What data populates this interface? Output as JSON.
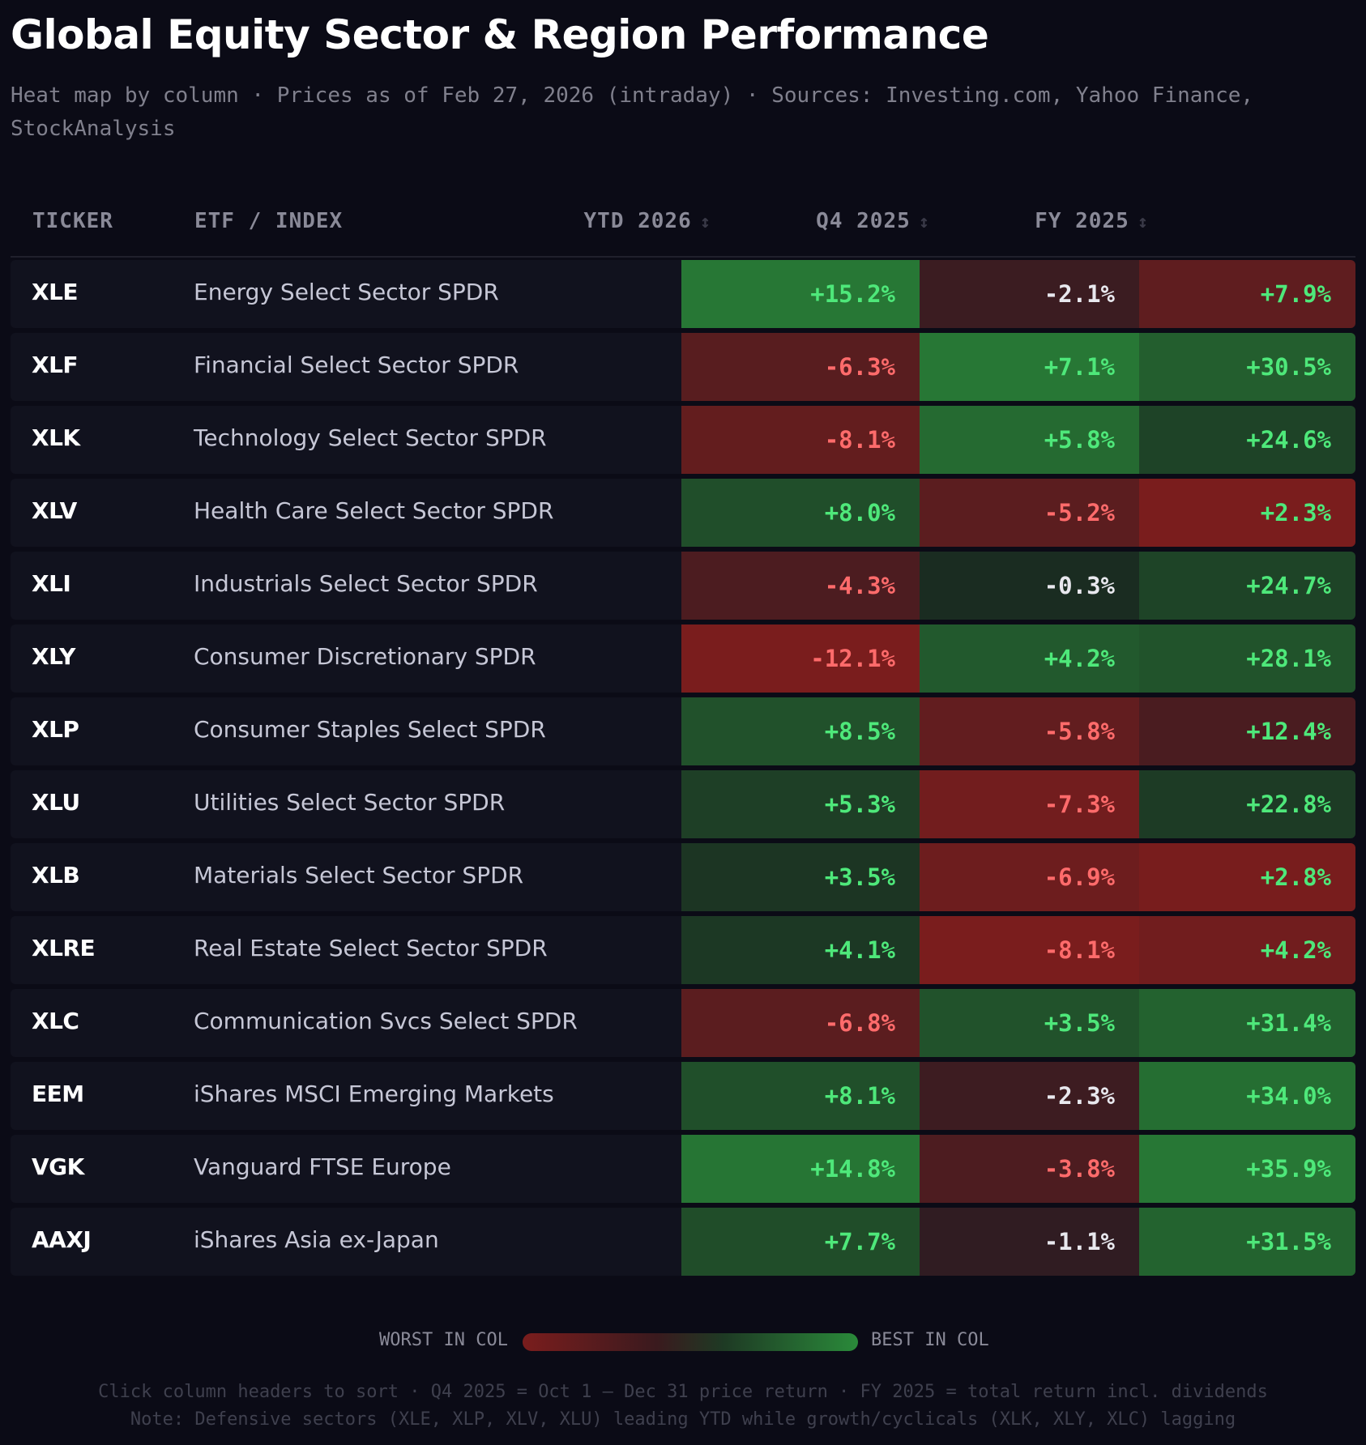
{
  "title": "Global Equity Sector & Region Performance",
  "subtitle": "Heat map by column · Prices as of Feb 27, 2026 (intraday) · Sources: Investing.com, Yahoo Finance, StockAnalysis",
  "columns": {
    "ticker": "TICKER",
    "etf": "ETF / INDEX",
    "ytd": "YTD 2026",
    "q4": "Q4 2025",
    "fy": "FY 2025",
    "sort_glyph": "↕"
  },
  "rows": [
    {
      "ticker": "XLE",
      "name": "Energy Select Sector SPDR",
      "ytd": "+15.2%",
      "ytd_v": 15.2,
      "q4": "-2.1%",
      "q4_v": -2.1,
      "fy": "+7.9%",
      "fy_v": 7.9
    },
    {
      "ticker": "XLF",
      "name": "Financial Select Sector SPDR",
      "ytd": "-6.3%",
      "ytd_v": -6.3,
      "q4": "+7.1%",
      "q4_v": 7.1,
      "fy": "+30.5%",
      "fy_v": 30.5
    },
    {
      "ticker": "XLK",
      "name": "Technology Select Sector SPDR",
      "ytd": "-8.1%",
      "ytd_v": -8.1,
      "q4": "+5.8%",
      "q4_v": 5.8,
      "fy": "+24.6%",
      "fy_v": 24.6
    },
    {
      "ticker": "XLV",
      "name": "Health Care Select Sector SPDR",
      "ytd": "+8.0%",
      "ytd_v": 8.0,
      "q4": "-5.2%",
      "q4_v": -5.2,
      "fy": "+2.3%",
      "fy_v": 2.3
    },
    {
      "ticker": "XLI",
      "name": "Industrials Select Sector SPDR",
      "ytd": "-4.3%",
      "ytd_v": -4.3,
      "q4": "-0.3%",
      "q4_v": -0.3,
      "fy": "+24.7%",
      "fy_v": 24.7
    },
    {
      "ticker": "XLY",
      "name": "Consumer Discretionary SPDR",
      "ytd": "-12.1%",
      "ytd_v": -12.1,
      "q4": "+4.2%",
      "q4_v": 4.2,
      "fy": "+28.1%",
      "fy_v": 28.1
    },
    {
      "ticker": "XLP",
      "name": "Consumer Staples Select SPDR",
      "ytd": "+8.5%",
      "ytd_v": 8.5,
      "q4": "-5.8%",
      "q4_v": -5.8,
      "fy": "+12.4%",
      "fy_v": 12.4
    },
    {
      "ticker": "XLU",
      "name": "Utilities Select Sector SPDR",
      "ytd": "+5.3%",
      "ytd_v": 5.3,
      "q4": "-7.3%",
      "q4_v": -7.3,
      "fy": "+22.8%",
      "fy_v": 22.8
    },
    {
      "ticker": "XLB",
      "name": "Materials Select Sector SPDR",
      "ytd": "+3.5%",
      "ytd_v": 3.5,
      "q4": "-6.9%",
      "q4_v": -6.9,
      "fy": "+2.8%",
      "fy_v": 2.8
    },
    {
      "ticker": "XLRE",
      "name": "Real Estate Select Sector SPDR",
      "ytd": "+4.1%",
      "ytd_v": 4.1,
      "q4": "-8.1%",
      "q4_v": -8.1,
      "fy": "+4.2%",
      "fy_v": 4.2
    },
    {
      "ticker": "XLC",
      "name": "Communication Svcs Select SPDR",
      "ytd": "-6.8%",
      "ytd_v": -6.8,
      "q4": "+3.5%",
      "q4_v": 3.5,
      "fy": "+31.4%",
      "fy_v": 31.4
    },
    {
      "ticker": "EEM",
      "name": "iShares MSCI Emerging Markets",
      "ytd": "+8.1%",
      "ytd_v": 8.1,
      "q4": "-2.3%",
      "q4_v": -2.3,
      "fy": "+34.0%",
      "fy_v": 34.0,
      "group_start": true
    },
    {
      "ticker": "VGK",
      "name": "Vanguard FTSE Europe",
      "ytd": "+14.8%",
      "ytd_v": 14.8,
      "q4": "-3.8%",
      "q4_v": -3.8,
      "fy": "+35.9%",
      "fy_v": 35.9
    },
    {
      "ticker": "AAXJ",
      "name": "iShares Asia ex-Japan",
      "ytd": "+7.7%",
      "ytd_v": 7.7,
      "q4": "-1.1%",
      "q4_v": -1.1,
      "fy": "+31.5%",
      "fy_v": 31.5
    }
  ],
  "legend": {
    "worst": "WORST IN COL",
    "best": "BEST IN COL"
  },
  "footnote": {
    "line1": "Click column headers to sort · Q4 2025 = Oct 1 – Dec 31 price return · FY 2025 = total return incl. dividends",
    "line2": "Note: Defensive sectors (XLE, XLP, XLV, XLU) leading YTD while growth/cyclicals (XLK, XLY, XLC) lagging"
  },
  "colors": {
    "worst": "#7a1d1d",
    "mid_neg": "#2a1c22",
    "mid_pos": "#1a2a20",
    "best": "#2a8a3a",
    "text_pos": "#4ee87a",
    "text_neg": "#ff6b6b"
  }
}
